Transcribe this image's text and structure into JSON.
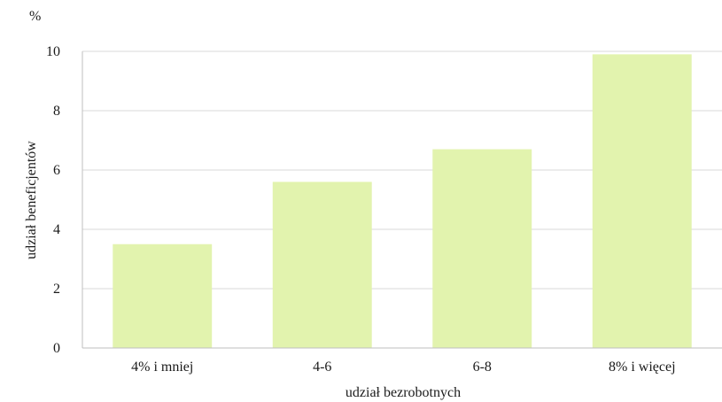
{
  "chart_data": {
    "type": "bar",
    "title": "",
    "unit_label": "%",
    "xlabel": "udział bezrobotnych",
    "ylabel": "udział beneficjentów",
    "categories": [
      "4% i mniej",
      "4-6",
      "6-8",
      "8% i więcej"
    ],
    "values": [
      3.5,
      5.6,
      6.7,
      9.9
    ],
    "ylim": [
      0,
      10
    ],
    "yticks": [
      "0",
      "2",
      "4",
      "6",
      "8",
      "10"
    ],
    "grid": true,
    "legend": "none",
    "bar_color": "#e2f3ae"
  }
}
